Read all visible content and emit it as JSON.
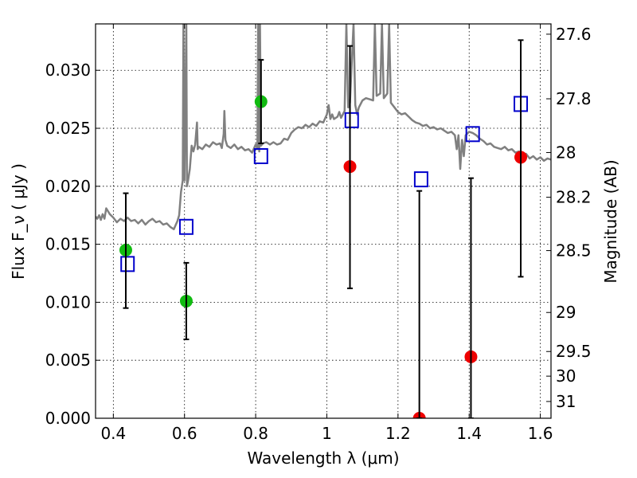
{
  "chart_data": {
    "type": "scatter",
    "xlabel": "Wavelength  λ (μm)",
    "ylabel": "Flux  F_ν ( μJy )",
    "y2label": "Magnitude (AB)",
    "xlim": [
      0.35,
      1.63
    ],
    "ylim": [
      0.0,
      0.034
    ],
    "grid": true,
    "x_ticks": [
      0.4,
      0.6,
      0.8,
      1.0,
      1.2,
      1.4,
      1.6
    ],
    "x_tick_labels": [
      "0.4",
      "0.6",
      "0.8",
      "1",
      "1.2",
      "1.4",
      "1.6"
    ],
    "y_ticks": [
      0.0,
      0.005,
      0.01,
      0.015,
      0.02,
      0.025,
      0.03
    ],
    "y_tick_labels": [
      "0.000",
      "0.005",
      "0.010",
      "0.015",
      "0.020",
      "0.025",
      "0.030"
    ],
    "magnitude_ticks": [
      {
        "mag": 27.6,
        "label": "27.6"
      },
      {
        "mag": 27.8,
        "label": "27.8"
      },
      {
        "mag": 28,
        "label": "28"
      },
      {
        "mag": 28.2,
        "label": "28.2"
      },
      {
        "mag": 28.5,
        "label": "28.5"
      },
      {
        "mag": 29,
        "label": "29"
      },
      {
        "mag": 29.5,
        "label": "29.5"
      },
      {
        "mag": 30,
        "label": "30"
      },
      {
        "mag": 31,
        "label": "31"
      }
    ],
    "series": [
      {
        "kind": "spectrum",
        "color": "#808080",
        "points": [
          [
            0.35,
            0.0174
          ],
          [
            0.355,
            0.0172
          ],
          [
            0.36,
            0.0175
          ],
          [
            0.365,
            0.0171
          ],
          [
            0.37,
            0.0176
          ],
          [
            0.375,
            0.0172
          ],
          [
            0.38,
            0.0181
          ],
          [
            0.39,
            0.0176
          ],
          [
            0.4,
            0.0173
          ],
          [
            0.41,
            0.0169
          ],
          [
            0.42,
            0.0172
          ],
          [
            0.43,
            0.017
          ],
          [
            0.44,
            0.0173
          ],
          [
            0.45,
            0.017
          ],
          [
            0.46,
            0.0171
          ],
          [
            0.47,
            0.0168
          ],
          [
            0.48,
            0.0171
          ],
          [
            0.49,
            0.0167
          ],
          [
            0.5,
            0.017
          ],
          [
            0.51,
            0.0172
          ],
          [
            0.52,
            0.0169
          ],
          [
            0.53,
            0.017
          ],
          [
            0.54,
            0.0167
          ],
          [
            0.55,
            0.0168
          ],
          [
            0.56,
            0.0165
          ],
          [
            0.57,
            0.0163
          ],
          [
            0.58,
            0.017
          ],
          [
            0.585,
            0.0175
          ],
          [
            0.59,
            0.0195
          ],
          [
            0.595,
            0.0205
          ],
          [
            0.597,
            0.034
          ],
          [
            0.6,
            0.0205
          ],
          [
            0.605,
            0.034
          ],
          [
            0.607,
            0.02
          ],
          [
            0.61,
            0.0205
          ],
          [
            0.615,
            0.0215
          ],
          [
            0.62,
            0.0235
          ],
          [
            0.625,
            0.023
          ],
          [
            0.63,
            0.0236
          ],
          [
            0.635,
            0.0255
          ],
          [
            0.637,
            0.0232
          ],
          [
            0.64,
            0.0234
          ],
          [
            0.65,
            0.0232
          ],
          [
            0.66,
            0.0236
          ],
          [
            0.67,
            0.0234
          ],
          [
            0.68,
            0.0238
          ],
          [
            0.69,
            0.0236
          ],
          [
            0.7,
            0.0237
          ],
          [
            0.705,
            0.0233
          ],
          [
            0.71,
            0.0245
          ],
          [
            0.712,
            0.0265
          ],
          [
            0.715,
            0.024
          ],
          [
            0.72,
            0.0235
          ],
          [
            0.73,
            0.0233
          ],
          [
            0.74,
            0.0236
          ],
          [
            0.75,
            0.0232
          ],
          [
            0.76,
            0.0234
          ],
          [
            0.77,
            0.0231
          ],
          [
            0.78,
            0.0232
          ],
          [
            0.79,
            0.0229
          ],
          [
            0.8,
            0.0236
          ],
          [
            0.805,
            0.0232
          ],
          [
            0.807,
            0.034
          ],
          [
            0.81,
            0.023
          ],
          [
            0.812,
            0.034
          ],
          [
            0.815,
            0.0235
          ],
          [
            0.82,
            0.0237
          ],
          [
            0.83,
            0.0238
          ],
          [
            0.84,
            0.0236
          ],
          [
            0.85,
            0.0238
          ],
          [
            0.86,
            0.0236
          ],
          [
            0.87,
            0.0237
          ],
          [
            0.88,
            0.0241
          ],
          [
            0.89,
            0.024
          ],
          [
            0.9,
            0.0246
          ],
          [
            0.91,
            0.0249
          ],
          [
            0.92,
            0.0251
          ],
          [
            0.93,
            0.025
          ],
          [
            0.94,
            0.0253
          ],
          [
            0.95,
            0.0251
          ],
          [
            0.96,
            0.0254
          ],
          [
            0.97,
            0.0252
          ],
          [
            0.98,
            0.0256
          ],
          [
            0.99,
            0.0255
          ],
          [
            1.0,
            0.0262
          ],
          [
            1.005,
            0.027
          ],
          [
            1.01,
            0.0258
          ],
          [
            1.015,
            0.0262
          ],
          [
            1.02,
            0.0258
          ],
          [
            1.03,
            0.026
          ],
          [
            1.035,
            0.0264
          ],
          [
            1.04,
            0.0259
          ],
          [
            1.045,
            0.0262
          ],
          [
            1.05,
            0.0265
          ],
          [
            1.055,
            0.034
          ],
          [
            1.06,
            0.0268
          ],
          [
            1.065,
            0.0272
          ],
          [
            1.075,
            0.034
          ],
          [
            1.08,
            0.027
          ],
          [
            1.085,
            0.0262
          ],
          [
            1.09,
            0.0268
          ],
          [
            1.1,
            0.0274
          ],
          [
            1.11,
            0.0276
          ],
          [
            1.12,
            0.0275
          ],
          [
            1.13,
            0.0274
          ],
          [
            1.135,
            0.034
          ],
          [
            1.14,
            0.0278
          ],
          [
            1.15,
            0.028
          ],
          [
            1.155,
            0.034
          ],
          [
            1.16,
            0.0276
          ],
          [
            1.17,
            0.028
          ],
          [
            1.175,
            0.034
          ],
          [
            1.18,
            0.0272
          ],
          [
            1.19,
            0.0268
          ],
          [
            1.2,
            0.0264
          ],
          [
            1.21,
            0.0262
          ],
          [
            1.22,
            0.0263
          ],
          [
            1.23,
            0.026
          ],
          [
            1.24,
            0.0257
          ],
          [
            1.25,
            0.0255
          ],
          [
            1.26,
            0.0254
          ],
          [
            1.27,
            0.0252
          ],
          [
            1.28,
            0.0253
          ],
          [
            1.29,
            0.025
          ],
          [
            1.3,
            0.0251
          ],
          [
            1.31,
            0.0249
          ],
          [
            1.32,
            0.025
          ],
          [
            1.33,
            0.0248
          ],
          [
            1.34,
            0.0246
          ],
          [
            1.35,
            0.0247
          ],
          [
            1.36,
            0.0244
          ],
          [
            1.365,
            0.0232
          ],
          [
            1.37,
            0.0244
          ],
          [
            1.375,
            0.0215
          ],
          [
            1.38,
            0.024
          ],
          [
            1.385,
            0.0226
          ],
          [
            1.39,
            0.0244
          ],
          [
            1.4,
            0.0247
          ],
          [
            1.41,
            0.0246
          ],
          [
            1.42,
            0.0244
          ],
          [
            1.43,
            0.0241
          ],
          [
            1.44,
            0.0239
          ],
          [
            1.45,
            0.0236
          ],
          [
            1.46,
            0.0237
          ],
          [
            1.47,
            0.0234
          ],
          [
            1.48,
            0.0233
          ],
          [
            1.49,
            0.0232
          ],
          [
            1.5,
            0.0234
          ],
          [
            1.51,
            0.0231
          ],
          [
            1.52,
            0.0232
          ],
          [
            1.53,
            0.0229
          ],
          [
            1.54,
            0.023
          ],
          [
            1.55,
            0.0226
          ],
          [
            1.56,
            0.0228
          ],
          [
            1.57,
            0.0224
          ],
          [
            1.58,
            0.0226
          ],
          [
            1.59,
            0.0223
          ],
          [
            1.6,
            0.0225
          ],
          [
            1.61,
            0.0222
          ],
          [
            1.62,
            0.0224
          ],
          [
            1.63,
            0.0223
          ]
        ]
      },
      {
        "kind": "open-square",
        "color": "#0000cc",
        "points": [
          [
            0.44,
            0.0133
          ],
          [
            0.605,
            0.0165
          ],
          [
            0.815,
            0.0226
          ],
          [
            1.07,
            0.0257
          ],
          [
            1.265,
            0.0206
          ],
          [
            1.41,
            0.0245
          ],
          [
            1.545,
            0.0271
          ]
        ]
      },
      {
        "kind": "filled-circle",
        "color": "#11bb11",
        "points": [
          [
            0.435,
            0.0145
          ],
          [
            0.605,
            0.0101
          ],
          [
            0.815,
            0.0273
          ]
        ]
      },
      {
        "kind": "filled-circle",
        "color": "#ee0000",
        "points": [
          [
            1.065,
            0.0217
          ],
          [
            1.26,
            0.0
          ],
          [
            1.405,
            0.0053
          ],
          [
            1.545,
            0.0225
          ]
        ]
      },
      {
        "kind": "errorbar",
        "color": "#000000",
        "bars": [
          {
            "x": 0.435,
            "low": 0.0095,
            "high": 0.0194
          },
          {
            "x": 0.605,
            "low": 0.0068,
            "high": 0.0134
          },
          {
            "x": 0.815,
            "low": 0.0237,
            "high": 0.0309
          },
          {
            "x": 1.065,
            "low": 0.0112,
            "high": 0.0321
          },
          {
            "x": 1.26,
            "low": 0.0,
            "high": 0.0196
          },
          {
            "x": 1.405,
            "low": 0.0,
            "high": 0.0207
          },
          {
            "x": 1.545,
            "low": 0.0122,
            "high": 0.0326
          }
        ]
      }
    ]
  }
}
